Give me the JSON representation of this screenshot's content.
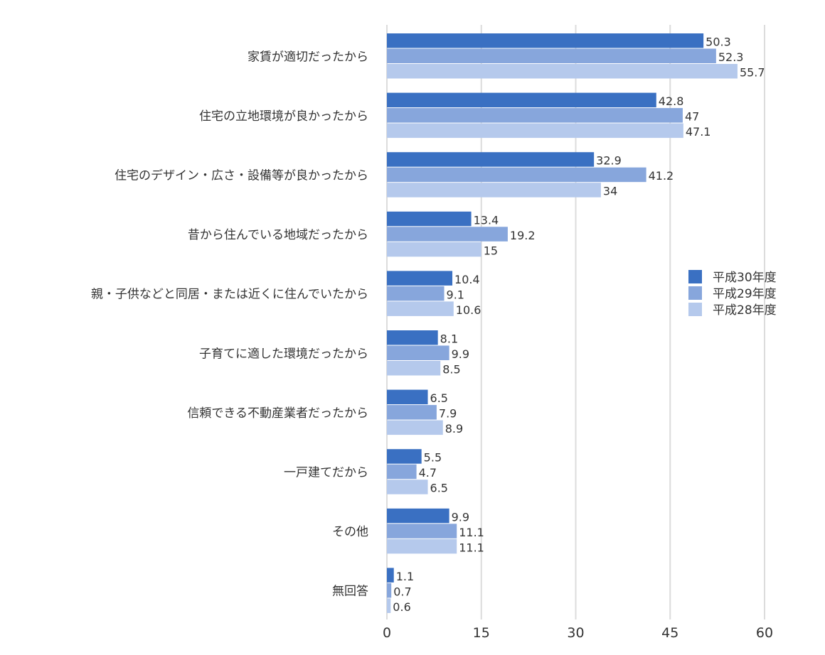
{
  "chart_data": {
    "type": "bar",
    "orientation": "horizontal",
    "title": "",
    "xlabel": "",
    "ylabel": "",
    "xlim": [
      0,
      60
    ],
    "xticks": [
      0,
      15,
      30,
      45,
      60
    ],
    "grid": true,
    "legend_position": "right",
    "categories": [
      "家賃が適切だったから",
      "住宅の立地環境が良かったから",
      "住宅のデザイン・広さ・設備等が良かったから",
      "昔から住んでいる地域だったから",
      "親・子供などと同居・または近くに住んでいたから",
      "子育てに適した環境だったから",
      "信頼できる不動産業者だったから",
      "一戸建てだから",
      "その他",
      "無回答"
    ],
    "series": [
      {
        "name": "平成30年度",
        "color": "#3a70c2",
        "values": [
          50.3,
          42.8,
          32.9,
          13.4,
          10.4,
          8.1,
          6.5,
          5.5,
          9.9,
          1.1
        ]
      },
      {
        "name": "平成29年度",
        "color": "#87a6dc",
        "values": [
          52.3,
          47,
          41.2,
          19.2,
          9.1,
          9.9,
          7.9,
          4.7,
          11.1,
          0.7
        ]
      },
      {
        "name": "平成28年度",
        "color": "#b5c9ec",
        "values": [
          55.7,
          47.1,
          34,
          15,
          10.6,
          8.5,
          8.9,
          6.5,
          11.1,
          0.6
        ]
      }
    ]
  }
}
